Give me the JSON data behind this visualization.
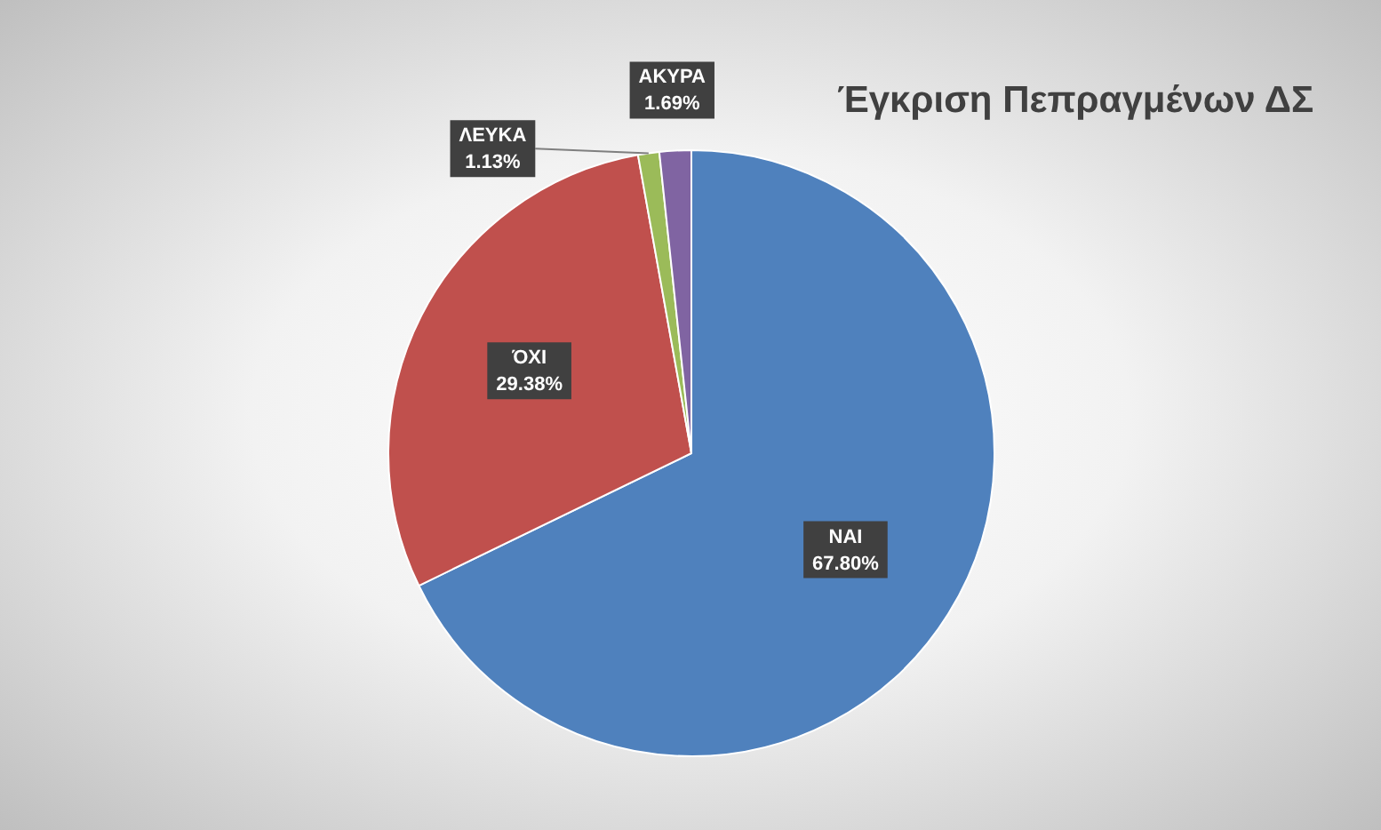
{
  "chart_data": {
    "type": "pie",
    "title": "Έγκριση Πεπραγμένων ΔΣ",
    "categories": [
      "ΝΑΙ",
      "ΌΧΙ",
      "ΛΕΥΚΑ",
      "ΑΚΥΡΑ"
    ],
    "values": [
      67.8,
      29.38,
      1.13,
      1.69
    ],
    "colors": [
      "#4f81bd",
      "#c0504d",
      "#9bbb59",
      "#8064a2"
    ],
    "value_labels": [
      "67.80%",
      "29.38%",
      "1.13%",
      "1.69%"
    ],
    "legend": false
  }
}
